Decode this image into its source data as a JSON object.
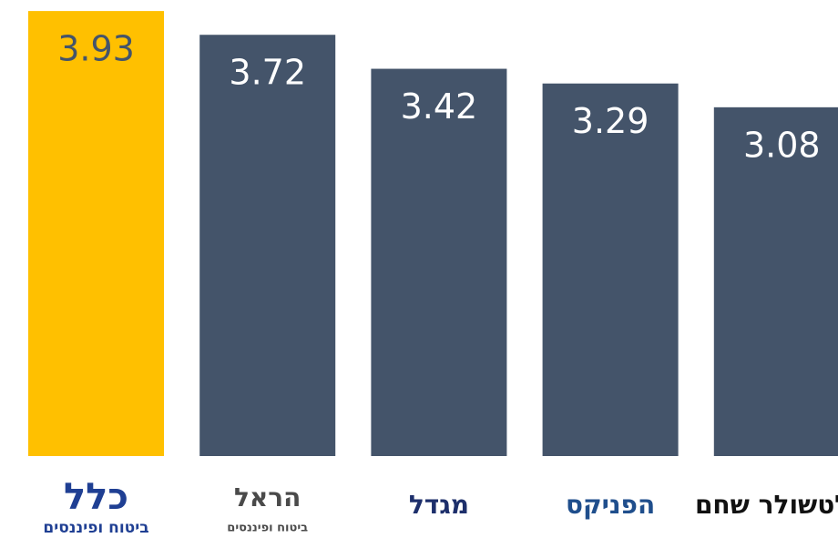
{
  "chart_data": {
    "type": "bar",
    "categories": [
      "כלל",
      "הראל",
      "מגדל",
      "הפניקס",
      "אלטשולר שחם"
    ],
    "category_subtitles": [
      "ביטוח ופיננסים",
      "ביטוח ופיננסים",
      null,
      null,
      null
    ],
    "category_colors": [
      "#1f3f93",
      "#4a4a4a",
      "#1d2f6b",
      "#1f4e8c",
      "#111111"
    ],
    "values": [
      3.93,
      3.72,
      3.42,
      3.29,
      3.08
    ],
    "colors": [
      "#ffc000",
      "#44546a",
      "#44546a",
      "#44546a",
      "#44546a"
    ],
    "label_colors": [
      "#44546a",
      "#ffffff",
      "#ffffff",
      "#ffffff",
      "#ffffff"
    ],
    "ylim": [
      0,
      4
    ]
  }
}
